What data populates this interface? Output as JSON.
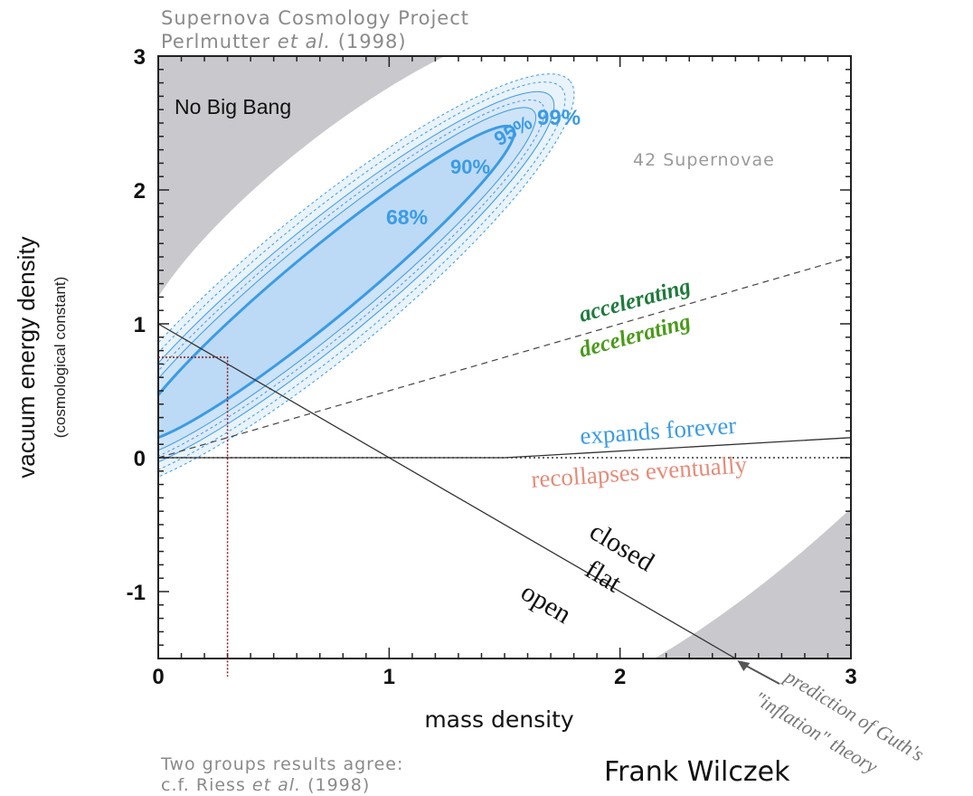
{
  "header": {
    "line1": "Supernova Cosmology Project",
    "line2_name": "Perlmutter",
    "line2_etal": "et al.",
    "line2_year": "(1998)"
  },
  "footer": {
    "line1": "Two groups results agree:",
    "line2_prefix": "c.f.  Riess",
    "line2_etal": "et al.",
    "line2_year": "(1998)"
  },
  "credit": "Frank Wilczek",
  "chart_data": {
    "type": "scatter",
    "xlabel": "mass density",
    "ylabel": "vacuum energy density",
    "ylabel_sub": "(cosmological constant)",
    "xlim": [
      0,
      3
    ],
    "ylim": [
      -1.5,
      3
    ],
    "xticks": [
      0,
      1,
      2,
      3
    ],
    "xtick_labels": [
      "0",
      "1",
      "2",
      "3"
    ],
    "yticks": [
      -1,
      0,
      1,
      2,
      3
    ],
    "ytick_labels": [
      "-1",
      "0",
      "1",
      "2",
      "3"
    ],
    "grid": false,
    "confidence_contours": [
      {
        "label": "68%",
        "color": "#3b9be6"
      },
      {
        "label": "90%",
        "color": "#3b9be6"
      },
      {
        "label": "95%",
        "color": "#3b9be6"
      },
      {
        "label": "99%",
        "color": "#3b9be6"
      }
    ],
    "regions": [
      {
        "label": "No Big Bang",
        "color": "#c9c9cd"
      },
      {
        "label": "",
        "color": "#c9c9cd"
      }
    ],
    "annotations": [
      {
        "text": "42 Supernovae",
        "color": "#9a9a9a"
      },
      {
        "text": "accelerating",
        "color": "#1f7a3c"
      },
      {
        "text": "decelerating",
        "color": "#4a9a1a"
      },
      {
        "text": "expands forever",
        "color": "#3b9be6"
      },
      {
        "text": "recollapses eventually",
        "color": "#e58c7a"
      },
      {
        "text": "closed",
        "color": "#111111"
      },
      {
        "text": "flat",
        "color": "#111111"
      },
      {
        "text": "open",
        "color": "#111111"
      },
      {
        "text": "prediction of Guth's",
        "color": "#777777"
      },
      {
        "text": "\"inflation\" theory",
        "color": "#777777"
      }
    ],
    "lines": [
      {
        "name": "flat",
        "points": [
          [
            0,
            1
          ],
          [
            2.5,
            -1.5
          ]
        ],
        "style": "solid"
      },
      {
        "name": "accelerating-boundary",
        "points": [
          [
            0,
            0
          ],
          [
            3,
            1.5
          ]
        ],
        "style": "dashed"
      },
      {
        "name": "expands-forever-boundary",
        "points": [
          [
            0,
            0
          ],
          [
            1.5,
            0
          ],
          [
            3,
            0.15
          ]
        ],
        "style": "solid"
      },
      {
        "name": "lambda-zero",
        "points": [
          [
            0,
            0
          ],
          [
            3,
            0
          ]
        ],
        "style": "dotted"
      }
    ],
    "marker": {
      "x": 0.3,
      "y": 0.75,
      "color": "#8b1a1a"
    },
    "prediction_point": {
      "x": 2.5,
      "y": -1.5
    }
  }
}
